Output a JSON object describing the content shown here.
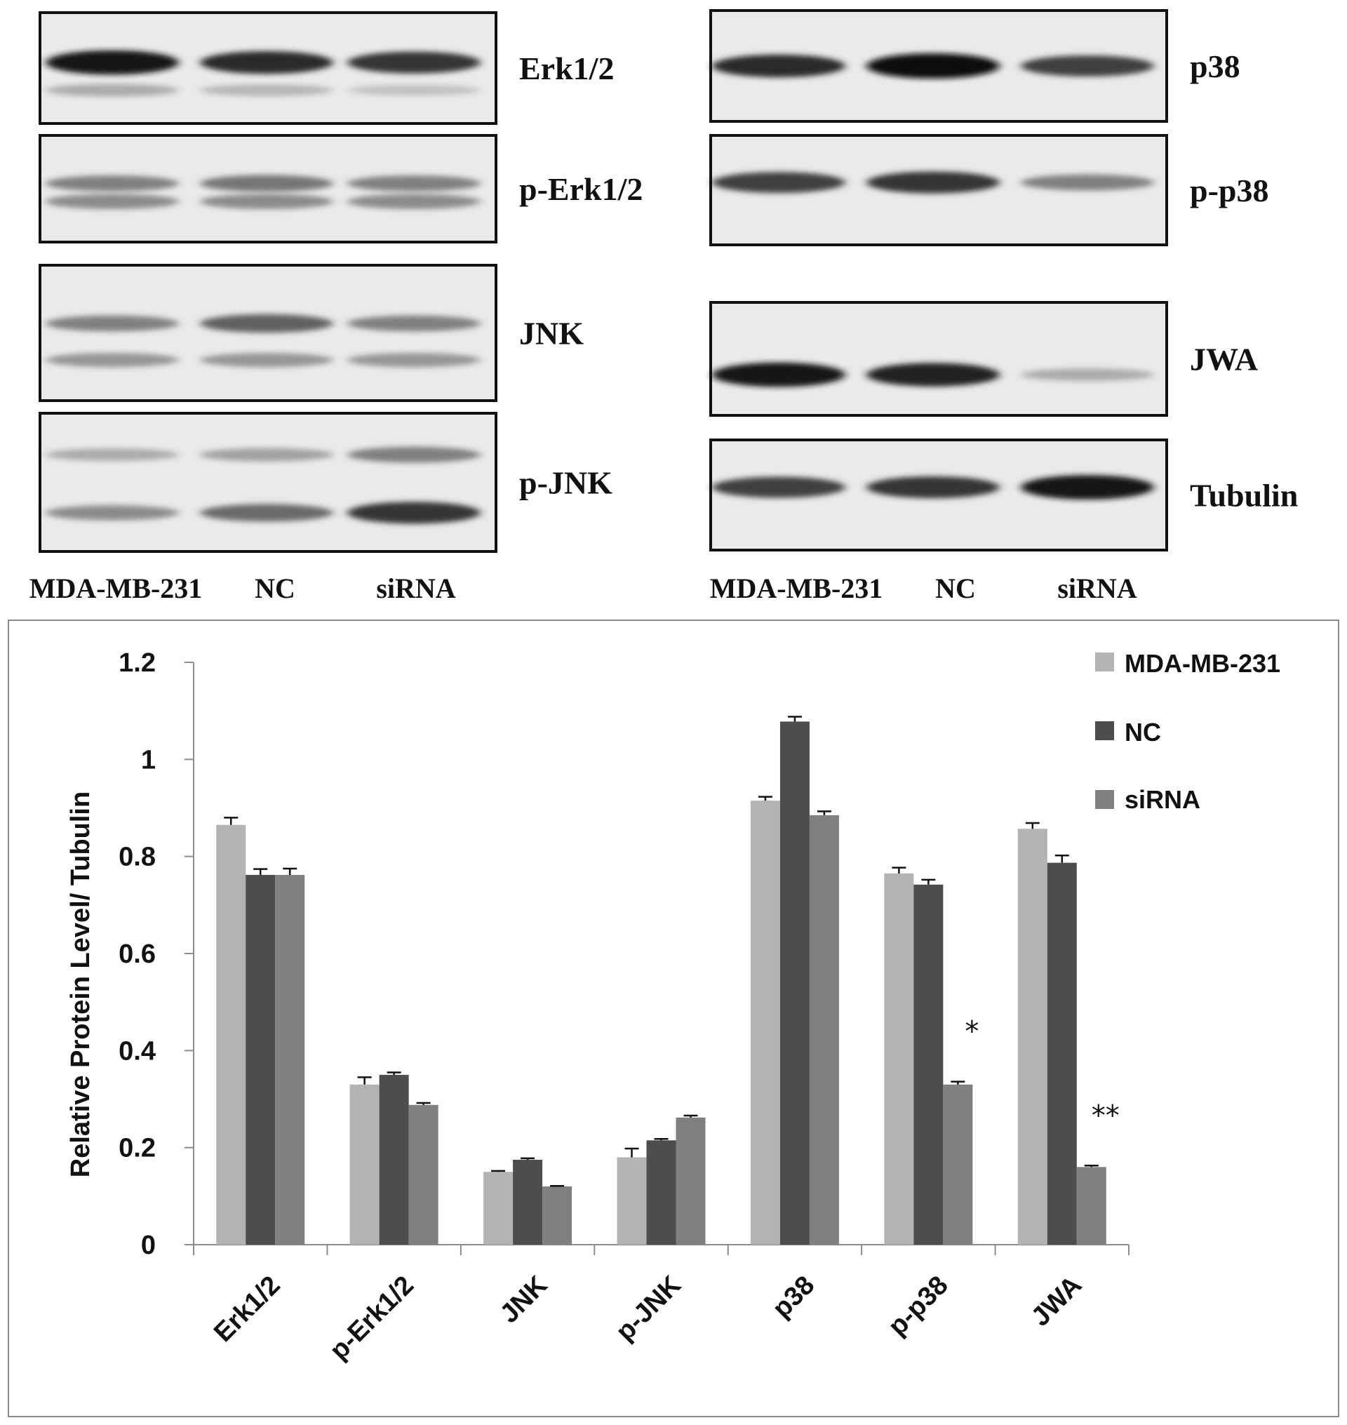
{
  "blots": {
    "left_panel": [
      {
        "id": "erk",
        "label": "Erk1/2",
        "bands": [
          [
            0.95,
            0.85,
            0.8
          ],
          [
            0.25,
            0.2,
            0.15
          ]
        ]
      },
      {
        "id": "perk",
        "label": "p-Erk1/2",
        "bands": [
          [
            0.45,
            0.5,
            0.45
          ],
          [
            0.4,
            0.4,
            0.4
          ]
        ]
      },
      {
        "id": "jnk",
        "label": "JNK",
        "bands": [
          [
            0.45,
            0.6,
            0.45
          ],
          [
            0.35,
            0.35,
            0.35
          ]
        ]
      },
      {
        "id": "pjnk",
        "label": "p-JNK",
        "bands": [
          [
            0.25,
            0.3,
            0.45
          ],
          [
            0.4,
            0.55,
            0.8
          ]
        ]
      }
    ],
    "right_panel": [
      {
        "id": "p38",
        "label": "p38",
        "bands": [
          [
            0.85,
            1.0,
            0.75
          ]
        ]
      },
      {
        "id": "pp38",
        "label": "p-p38",
        "bands": [
          [
            0.75,
            0.8,
            0.45
          ]
        ]
      },
      {
        "id": "jwa",
        "label": "JWA",
        "bands": [
          [
            0.95,
            0.9,
            0.25
          ]
        ]
      },
      {
        "id": "tubulin",
        "label": "Tubulin",
        "bands": [
          [
            0.75,
            0.8,
            0.95
          ]
        ]
      }
    ],
    "left_lanes": [
      "MDA-MB-231",
      "NC",
      "siRNA"
    ],
    "right_lanes": [
      "MDA-MB-231",
      "NC",
      "siRNA"
    ]
  },
  "chart_data": {
    "type": "bar",
    "categories": [
      "Erk1/2",
      "p-Erk1/2",
      "JNK",
      "p-JNK",
      "p38",
      "p-p38",
      "JWA"
    ],
    "series": [
      {
        "name": "MDA-MB-231",
        "color": "#b3b3b3",
        "values": [
          0.865,
          0.33,
          0.15,
          0.18,
          0.915,
          0.765,
          0.857
        ],
        "errors": [
          0.015,
          0.015,
          0.002,
          0.018,
          0.008,
          0.012,
          0.012
        ]
      },
      {
        "name": "NC",
        "color": "#4d4d4d",
        "values": [
          0.762,
          0.35,
          0.175,
          0.215,
          1.078,
          0.742,
          0.787
        ],
        "errors": [
          0.012,
          0.005,
          0.003,
          0.003,
          0.01,
          0.01,
          0.015
        ]
      },
      {
        "name": "siRNA",
        "color": "#808080",
        "values": [
          0.762,
          0.288,
          0.12,
          0.262,
          0.885,
          0.33,
          0.16
        ],
        "errors": [
          0.013,
          0.004,
          0.001,
          0.004,
          0.008,
          0.006,
          0.003
        ]
      }
    ],
    "ylabel": "Relative Protein Level/ Tubulin",
    "ylim": [
      0,
      1.2
    ],
    "yticks": [
      "0",
      "0.2",
      "0.4",
      "0.6",
      "0.8",
      "1",
      "1.2"
    ],
    "significance": [
      {
        "category": "p-p38",
        "series": "siRNA",
        "mark": "*"
      },
      {
        "category": "JWA",
        "series": "siRNA",
        "mark": "**"
      }
    ],
    "legend_position": "top-right",
    "grid": false
  }
}
